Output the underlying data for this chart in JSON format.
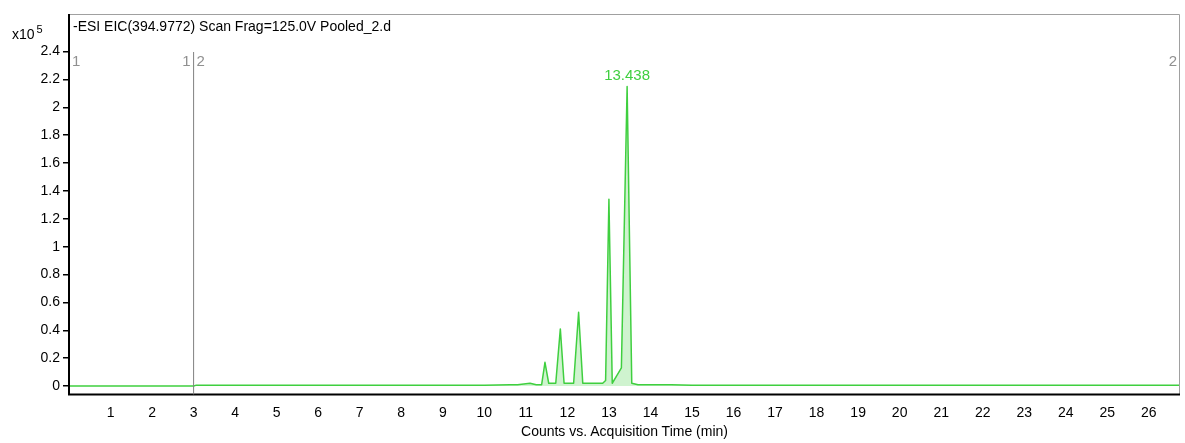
{
  "chart_data": {
    "type": "area",
    "title": "-ESI EIC(394.9772) Scan Frag=125.0V Pooled_2.d",
    "xlabel": "Counts vs. Acquisition Time (min)",
    "annotations": [
      "x10$^{5}$",
      {
        "text": "13.438",
        "x": 13.438,
        "y": 2.15
      },
      "1",
      "1",
      "2",
      "2"
    ],
    "ref_lines": [
      {
        "axis": "x",
        "value": 3,
        "label": null,
        "color": "#808080"
      }
    ],
    "series": [
      {
        "color": "#3fcf3f",
        "x": [
          0,
          3,
          3.05,
          6,
          10,
          10.8,
          11.1,
          11.25,
          11.38,
          11.46,
          11.55,
          11.72,
          11.83,
          11.92,
          12.15,
          12.27,
          12.37,
          12.85,
          12.92,
          13.0,
          13.08,
          13.2,
          13.3,
          13.438,
          13.55,
          13.7,
          14.5,
          15,
          20,
          26.75
        ],
        "values": [
          0,
          0,
          0.005,
          0.005,
          0.005,
          0.01,
          0.02,
          0.01,
          0.01,
          0.17,
          0.02,
          0.02,
          0.41,
          0.02,
          0.02,
          0.53,
          0.02,
          0.02,
          0.04,
          1.34,
          0.02,
          0.08,
          0.13,
          2.15,
          0.02,
          0.01,
          0.01,
          0.005,
          0.005,
          0.005
        ]
      }
    ],
    "xlim": [
      0,
      26.75
    ],
    "xticks": [
      1,
      2,
      3,
      4,
      5,
      6,
      7,
      8,
      9,
      10,
      11,
      12,
      13,
      14,
      15,
      16,
      17,
      18,
      19,
      20,
      21,
      22,
      23,
      24,
      25,
      26
    ],
    "ylim": [
      -0.06,
      2.67
    ],
    "yticks": [
      0,
      0.2,
      0.4,
      0.6,
      0.8,
      1,
      1.2,
      1.4,
      1.6,
      1.8,
      2,
      2.2,
      2.4
    ],
    "grid": false,
    "legend": false
  }
}
